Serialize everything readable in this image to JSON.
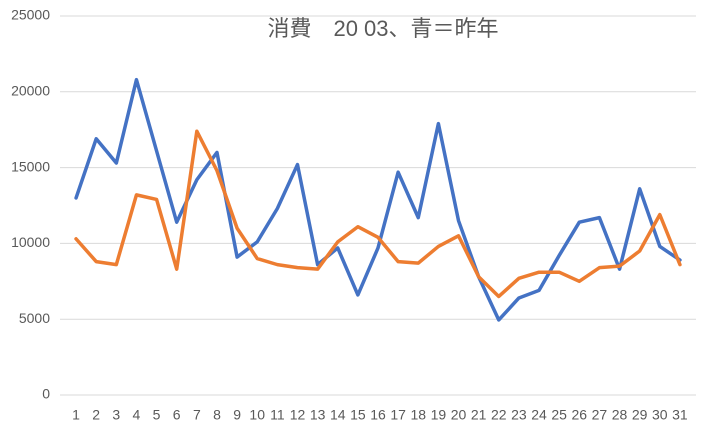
{
  "chart_data": {
    "type": "line",
    "title": "消費　20 03、青＝昨年",
    "categories": [
      "1",
      "2",
      "3",
      "4",
      "5",
      "6",
      "7",
      "8",
      "9",
      "10",
      "11",
      "12",
      "13",
      "14",
      "15",
      "16",
      "17",
      "18",
      "19",
      "20",
      "21",
      "22",
      "23",
      "24",
      "25",
      "26",
      "27",
      "28",
      "29",
      "30",
      "31"
    ],
    "series": [
      {
        "color": "#4472c4",
        "values": [
          13000,
          16900,
          15300,
          20800,
          16100,
          11400,
          14200,
          16000,
          9100,
          10100,
          12300,
          15200,
          8600,
          9700,
          6600,
          9700,
          14700,
          11700,
          17900,
          11500,
          7800,
          4950,
          6400,
          6900,
          9200,
          11400,
          11700,
          8300,
          13600,
          9800,
          8900
        ]
      },
      {
        "color": "#ed7d31",
        "values": [
          10300,
          8800,
          8600,
          13200,
          12900,
          8300,
          17400,
          14800,
          11000,
          9000,
          8600,
          8400,
          8300,
          10100,
          11100,
          10400,
          8800,
          8700,
          9800,
          10500,
          7800,
          6500,
          7700,
          8100,
          8100,
          7500,
          8400,
          8500,
          9500,
          11900,
          8600
        ]
      }
    ],
    "ylim": [
      0,
      25000
    ],
    "yticks": [
      0,
      5000,
      10000,
      15000,
      20000,
      25000
    ],
    "grid": true
  }
}
